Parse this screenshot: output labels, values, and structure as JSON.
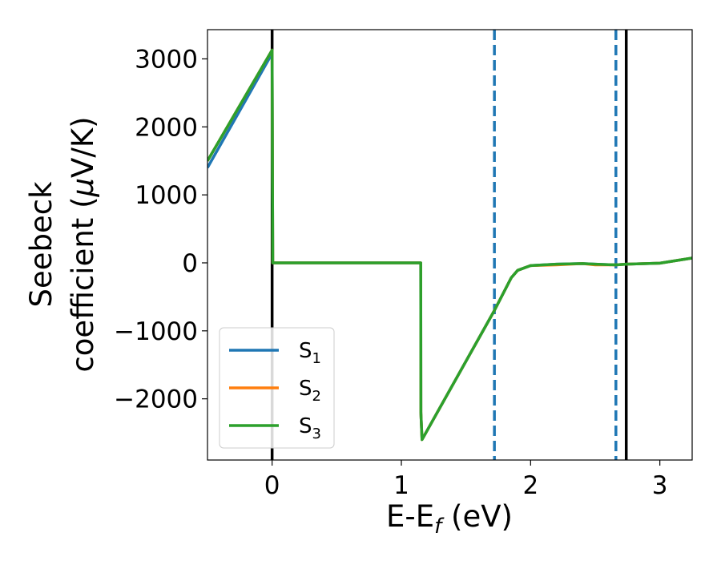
{
  "chart_data": {
    "type": "line",
    "xlabel": {
      "main": "E-E",
      "sub": "f",
      "tail": " (eV)"
    },
    "ylabel": {
      "line1": "Seebeck",
      "line2_pre": "coefficient  (",
      "line2_mu": "μ",
      "line2_post": "V/K)"
    },
    "xlim": [
      -0.5,
      3.25
    ],
    "ylim": [
      -2900,
      3430
    ],
    "xticks": [
      0,
      1,
      2,
      3
    ],
    "xtick_labels": [
      "0",
      "1",
      "2",
      "3"
    ],
    "yticks": [
      3000,
      2000,
      1000,
      0,
      -1000,
      -2000
    ],
    "ytick_labels": [
      "3000",
      "2000",
      "1000",
      "0",
      "−1000",
      "−2000"
    ],
    "vlines": [
      {
        "x": 0.0,
        "color": "#000000",
        "style": "solid"
      },
      {
        "x": 2.74,
        "color": "#000000",
        "style": "solid"
      },
      {
        "x": 1.72,
        "color": "#1f77b4",
        "style": "dashed"
      },
      {
        "x": 2.66,
        "color": "#1f77b4",
        "style": "dashed"
      }
    ],
    "series": [
      {
        "name": {
          "base": "S",
          "sub": "1"
        },
        "color": "#1f77b4",
        "x": [
          -0.5,
          0.0,
          0.005,
          1.15,
          1.151,
          1.16,
          1.72,
          1.85,
          1.9,
          2.0,
          2.2,
          2.4,
          2.5,
          2.66,
          2.74,
          3.0,
          3.25
        ],
        "y": [
          1400,
          3080,
          0,
          0,
          -2200,
          -2600,
          -700,
          -220,
          -110,
          -40,
          -20,
          -10,
          -20,
          -30,
          -20,
          -5,
          70
        ]
      },
      {
        "name": {
          "base": "S",
          "sub": "2"
        },
        "color": "#ff7f0e",
        "x": [
          -0.5,
          0.0,
          0.005,
          1.15,
          1.151,
          1.16,
          1.72,
          1.85,
          1.9,
          2.0,
          2.2,
          2.4,
          2.5,
          2.66,
          2.74,
          3.0,
          3.25
        ],
        "y": [
          1500,
          3130,
          0,
          0,
          -2200,
          -2600,
          -700,
          -220,
          -110,
          -40,
          -30,
          -10,
          -30,
          -30,
          -20,
          -5,
          70
        ]
      },
      {
        "name": {
          "base": "S",
          "sub": "3"
        },
        "color": "#2ca02c",
        "x": [
          -0.5,
          0.0,
          0.005,
          1.15,
          1.151,
          1.16,
          1.72,
          1.85,
          1.9,
          2.0,
          2.2,
          2.4,
          2.5,
          2.66,
          2.74,
          3.0,
          3.25
        ],
        "y": [
          1500,
          3130,
          0,
          0,
          -2200,
          -2600,
          -700,
          -220,
          -110,
          -40,
          -20,
          -10,
          -20,
          -30,
          -20,
          -5,
          70
        ]
      }
    ],
    "legend": "lower-left",
    "grid": false
  }
}
